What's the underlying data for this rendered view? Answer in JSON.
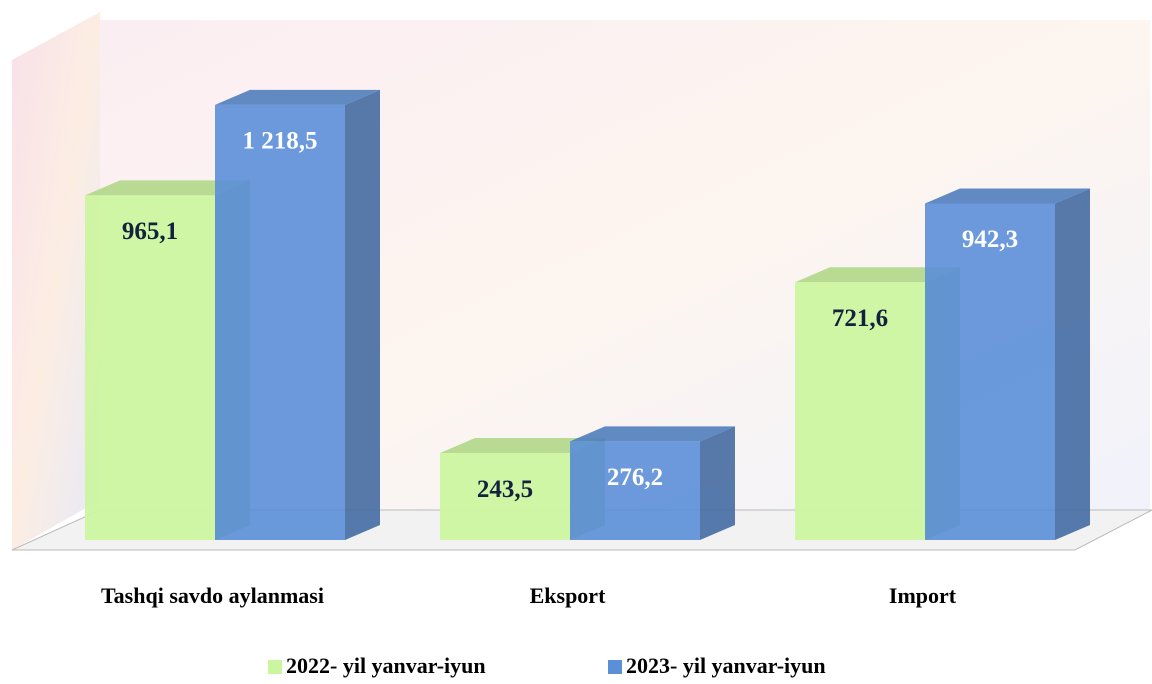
{
  "chart_data": {
    "type": "bar3d",
    "categories": [
      "Tashqi savdo aylanmasi",
      "Eksport",
      "Import"
    ],
    "series": [
      {
        "name": "2022- yil yanvar-iyun",
        "color": "#ccf5a0",
        "values": [
          965.1,
          243.5,
          721.6
        ],
        "value_labels": [
          "965,1",
          "243,5",
          "721,6"
        ]
      },
      {
        "name": "2023- yil yanvar-iyun",
        "color": "#5b8fd8",
        "values": [
          1218.5,
          276.2,
          942.3
        ],
        "value_labels": [
          "1 218,5",
          "276,2",
          "942,3"
        ]
      }
    ],
    "ylim": [
      0,
      1400
    ],
    "legend": "bottom"
  }
}
